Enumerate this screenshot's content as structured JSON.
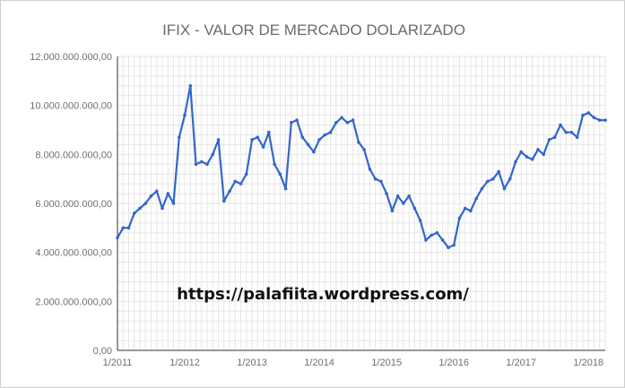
{
  "chart_data": {
    "type": "line",
    "title": "IFIX - VALOR DE MERCADO DOLARIZADO",
    "xlabel": "",
    "ylabel": "",
    "ylim": [
      0,
      12000000000
    ],
    "y_ticks": [
      {
        "value": 0,
        "label": "0,00"
      },
      {
        "value": 2000000000,
        "label": "2.000.000.000,00"
      },
      {
        "value": 4000000000,
        "label": "4.000.000.000,00"
      },
      {
        "value": 6000000000,
        "label": "6.000.000.000,00"
      },
      {
        "value": 8000000000,
        "label": "8.000.000.000,00"
      },
      {
        "value": 10000000000,
        "label": "10.000.000.000,00"
      },
      {
        "value": 12000000000,
        "label": "12.000.000.000,00"
      }
    ],
    "x_ticks": [
      "1/2011",
      "1/2012",
      "1/2013",
      "1/2014",
      "1/2015",
      "1/2016",
      "1/2017",
      "1/2018"
    ],
    "x_range": [
      "2011-01",
      "2018-04"
    ],
    "grid": true,
    "legend": "none",
    "annotation": "https://palafiita.wordpress.com/",
    "colors": {
      "line": "#3366cc",
      "grid": "#e6e6e6",
      "axis": "#333333"
    },
    "series": [
      {
        "x": [
          "2011-01",
          "2011-02",
          "2011-03",
          "2011-04",
          "2011-05",
          "2011-06",
          "2011-07",
          "2011-08",
          "2011-09",
          "2011-10",
          "2011-11",
          "2011-12",
          "2012-01",
          "2012-02",
          "2012-03",
          "2012-04",
          "2012-05",
          "2012-06",
          "2012-07",
          "2012-08",
          "2012-09",
          "2012-10",
          "2012-11",
          "2012-12",
          "2013-01",
          "2013-02",
          "2013-03",
          "2013-04",
          "2013-05",
          "2013-06",
          "2013-07",
          "2013-08",
          "2013-09",
          "2013-10",
          "2013-11",
          "2013-12",
          "2014-01",
          "2014-02",
          "2014-03",
          "2014-04",
          "2014-05",
          "2014-06",
          "2014-07",
          "2014-08",
          "2014-09",
          "2014-10",
          "2014-11",
          "2014-12",
          "2015-01",
          "2015-02",
          "2015-03",
          "2015-04",
          "2015-05",
          "2015-06",
          "2015-07",
          "2015-08",
          "2015-09",
          "2015-10",
          "2015-11",
          "2015-12",
          "2016-01",
          "2016-02",
          "2016-03",
          "2016-04",
          "2016-05",
          "2016-06",
          "2016-07",
          "2016-08",
          "2016-09",
          "2016-10",
          "2016-11",
          "2016-12",
          "2017-01",
          "2017-02",
          "2017-03",
          "2017-04",
          "2017-05",
          "2017-06",
          "2017-07",
          "2017-08",
          "2017-09",
          "2017-10",
          "2017-11",
          "2017-12",
          "2018-01",
          "2018-02",
          "2018-03",
          "2018-04"
        ],
        "values": [
          4600000000,
          5000000000,
          5000000000,
          5600000000,
          5800000000,
          6000000000,
          6300000000,
          6500000000,
          5800000000,
          6400000000,
          6000000000,
          8700000000,
          9600000000,
          10800000000,
          7600000000,
          7700000000,
          7600000000,
          8000000000,
          8600000000,
          6100000000,
          6500000000,
          6900000000,
          6800000000,
          7200000000,
          8600000000,
          8700000000,
          8300000000,
          8900000000,
          7600000000,
          7200000000,
          6600000000,
          9300000000,
          9400000000,
          8700000000,
          8400000000,
          8100000000,
          8600000000,
          8800000000,
          8900000000,
          9300000000,
          9500000000,
          9300000000,
          9400000000,
          8500000000,
          8200000000,
          7400000000,
          7000000000,
          6900000000,
          6400000000,
          5700000000,
          6300000000,
          6000000000,
          6300000000,
          5800000000,
          5300000000,
          4500000000,
          4700000000,
          4800000000,
          4500000000,
          4200000000,
          4300000000,
          5400000000,
          5800000000,
          5700000000,
          6200000000,
          6600000000,
          6900000000,
          7000000000,
          7300000000,
          6600000000,
          7000000000,
          7700000000,
          8100000000,
          7900000000,
          7800000000,
          8200000000,
          8000000000,
          8600000000,
          8700000000,
          9200000000,
          8900000000,
          8900000000,
          8700000000,
          9600000000,
          9700000000,
          9500000000,
          9400000000,
          9400000000
        ]
      }
    ]
  }
}
